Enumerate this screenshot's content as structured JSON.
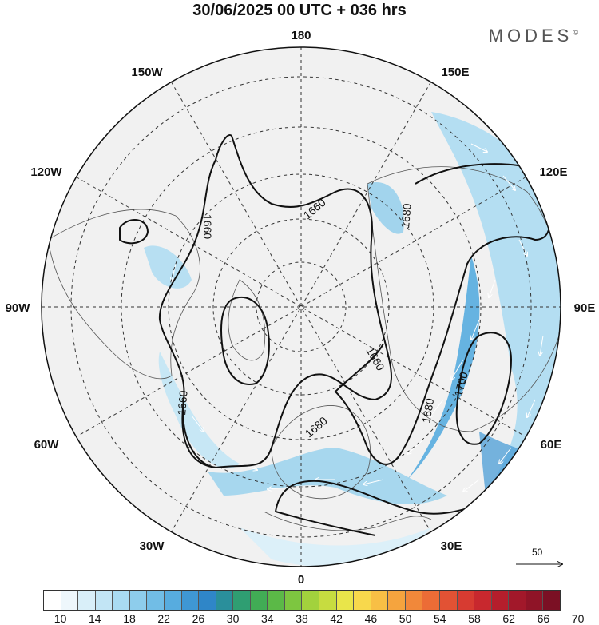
{
  "title": "30/06/2025  00 UTC  + 036 hrs",
  "brand": "MODES",
  "brand_mark": "©",
  "longitude_labels": {
    "top": "180",
    "left_upper_1": "150W",
    "right_upper_1": "150E",
    "left_upper_2": "120W",
    "right_upper_2": "120E",
    "left_mid": "90W",
    "right_mid": "90E",
    "left_lower_2": "60W",
    "right_lower_2": "60E",
    "left_lower_1": "30W",
    "right_lower_1": "30E",
    "bottom": "0"
  },
  "contour_labels": [
    "1660",
    "1660",
    "1680",
    "1660",
    "1660",
    "1700",
    "1680",
    "1680"
  ],
  "reference_vector": "50",
  "colorbar": {
    "colors": [
      "#ffffff",
      "#eef7fc",
      "#d9eff9",
      "#c2e5f5",
      "#a9dbf2",
      "#8ecdec",
      "#71bde6",
      "#57acdf",
      "#3f97d4",
      "#2f86c8",
      "#2a8f9b",
      "#2f9e72",
      "#41ac55",
      "#5bb947",
      "#7dc640",
      "#a2d23d",
      "#c7dc40",
      "#e9e54a",
      "#f8d84c",
      "#f8bf45",
      "#f5a43e",
      "#f1883a",
      "#ec6c36",
      "#e25234",
      "#d73b31",
      "#c8282e",
      "#b51e2c",
      "#a2182a",
      "#8f1427",
      "#7b1024"
    ],
    "labels": [
      "10",
      "14",
      "18",
      "22",
      "26",
      "30",
      "34",
      "38",
      "42",
      "46",
      "50",
      "54",
      "58",
      "62",
      "66",
      "70"
    ]
  }
}
